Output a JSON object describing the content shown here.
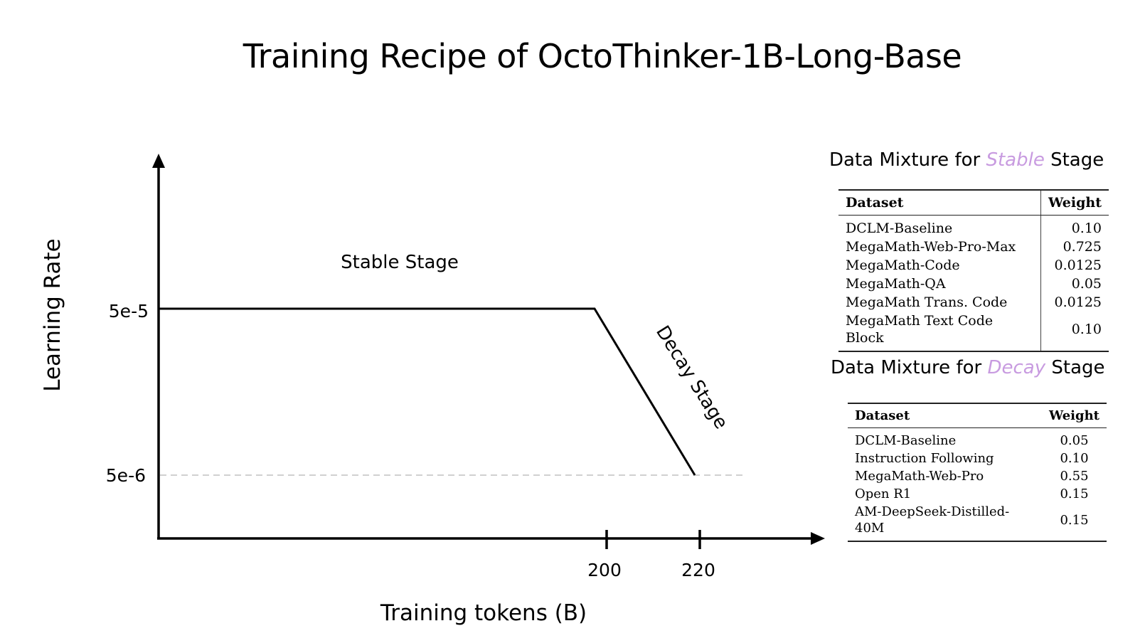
{
  "title": "Training Recipe of OctoThinker-1B-Long-Base",
  "chart_data": {
    "type": "line",
    "xlabel": "Training tokens (B)",
    "ylabel": "Learning Rate",
    "x_ticks": [
      "200",
      "220"
    ],
    "y_ticks": [
      "5e-5",
      "5e-6"
    ],
    "points": [
      {
        "x": 0,
        "y": 5e-05
      },
      {
        "x": 200,
        "y": 5e-05
      },
      {
        "x": 220,
        "y": 5e-06
      }
    ],
    "reference_line": {
      "y": 5e-06,
      "style": "dashed"
    },
    "annotations": {
      "stable": "Stable Stage",
      "decay": "Decay Stage"
    },
    "colors": {
      "line": "#000000",
      "reference": "#d0d0d0"
    }
  },
  "tables": {
    "stable": {
      "heading_prefix": "Data Mixture for ",
      "heading_accent": "Stable",
      "heading_suffix": " Stage",
      "columns": [
        "Dataset",
        "Weight"
      ],
      "rows": [
        [
          "DCLM-Baseline",
          "0.10"
        ],
        [
          "MegaMath-Web-Pro-Max",
          "0.725"
        ],
        [
          "MegaMath-Code",
          "0.0125"
        ],
        [
          "MegaMath-QA",
          "0.05"
        ],
        [
          "MegaMath Trans. Code",
          "0.0125"
        ],
        [
          "MegaMath Text Code Block",
          "0.10"
        ]
      ]
    },
    "decay": {
      "heading_prefix": "Data Mixture for ",
      "heading_accent": "Decay",
      "heading_suffix": " Stage",
      "columns": [
        "Dataset",
        "Weight"
      ],
      "rows": [
        [
          "DCLM-Baseline",
          "0.05"
        ],
        [
          "Instruction Following",
          "0.10"
        ],
        [
          "MegaMath-Web-Pro",
          "0.55"
        ],
        [
          "Open R1",
          "0.15"
        ],
        [
          "AM-DeepSeek-Distilled-40M",
          "0.15"
        ]
      ]
    }
  },
  "accent_color": "#c89be0"
}
